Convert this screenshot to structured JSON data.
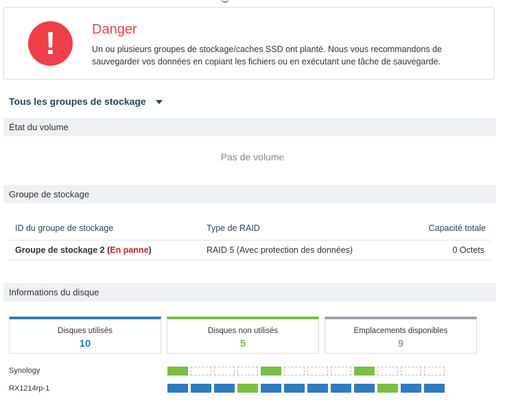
{
  "alert": {
    "title": "Danger",
    "message": "Un ou plusieurs groupes de stockage/caches SSD ont planté. Nous vous recommandons de sauvegarder vos données en copiant les fichiers ou en exécutant une tâche de sauvegarde.",
    "icon": "exclamation-icon",
    "color": "#ef3f49"
  },
  "pool_selector": {
    "label": "Tous les groupes de stockage"
  },
  "volume_section": {
    "title": "État du volume",
    "empty_text": "Pas de volume"
  },
  "storage_pool_section": {
    "title": "Groupe de stockage",
    "columns": {
      "id": "ID du groupe de stockage",
      "raid": "Type de RAID",
      "capacity": "Capacité totale"
    },
    "rows": [
      {
        "name": "Groupe de stockage 2",
        "status_open": "(",
        "status": "En panne",
        "status_close": ")",
        "raid": "RAID 5 (Avec protection des données)",
        "capacity": "0 Octets"
      }
    ]
  },
  "disk_section": {
    "title": "Informations du disque",
    "cards": [
      {
        "label": "Disques utilisés",
        "value": "10",
        "color": "#2f7bbf"
      },
      {
        "label": "Disques non utilisés",
        "value": "5",
        "color": "#79c042"
      },
      {
        "label": "Emplacements disponibles",
        "value": "9",
        "color": "#9aa4ae"
      }
    ],
    "legend_colors": {
      "used": "#2f7bbf",
      "unused": "#79c042"
    },
    "units": [
      {
        "name": "Synology",
        "slots": [
          "unused",
          "empty",
          "empty",
          "empty",
          "unused",
          "empty",
          "empty",
          "empty",
          "unused",
          "empty",
          "empty",
          "empty"
        ]
      },
      {
        "name": "RX1214rp-1",
        "slots": [
          "used",
          "used",
          "used",
          "unused",
          "used",
          "used",
          "used",
          "used",
          "used",
          "unused",
          "used",
          "used"
        ]
      }
    ]
  }
}
